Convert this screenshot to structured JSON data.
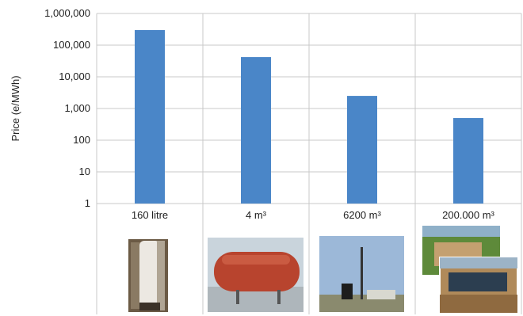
{
  "chart_data": {
    "type": "bar",
    "ylabel": "Price (e/MWh)",
    "yscale": "log",
    "ylim": [
      1,
      1000000
    ],
    "yticks": [
      "1",
      "10",
      "100",
      "1,000",
      "10,000",
      "100,000",
      "1,000,000"
    ],
    "categories": [
      "160 litre",
      "4 m³",
      "6200 m³",
      "200.000 m³"
    ],
    "values": [
      300000,
      42000,
      2500,
      500
    ],
    "bar_color": "#4a86c8",
    "grid": true,
    "photos": [
      "hot-water-tank",
      "red-steel-tank",
      "tower-storage-plant",
      "pit-storage-aerial"
    ]
  }
}
